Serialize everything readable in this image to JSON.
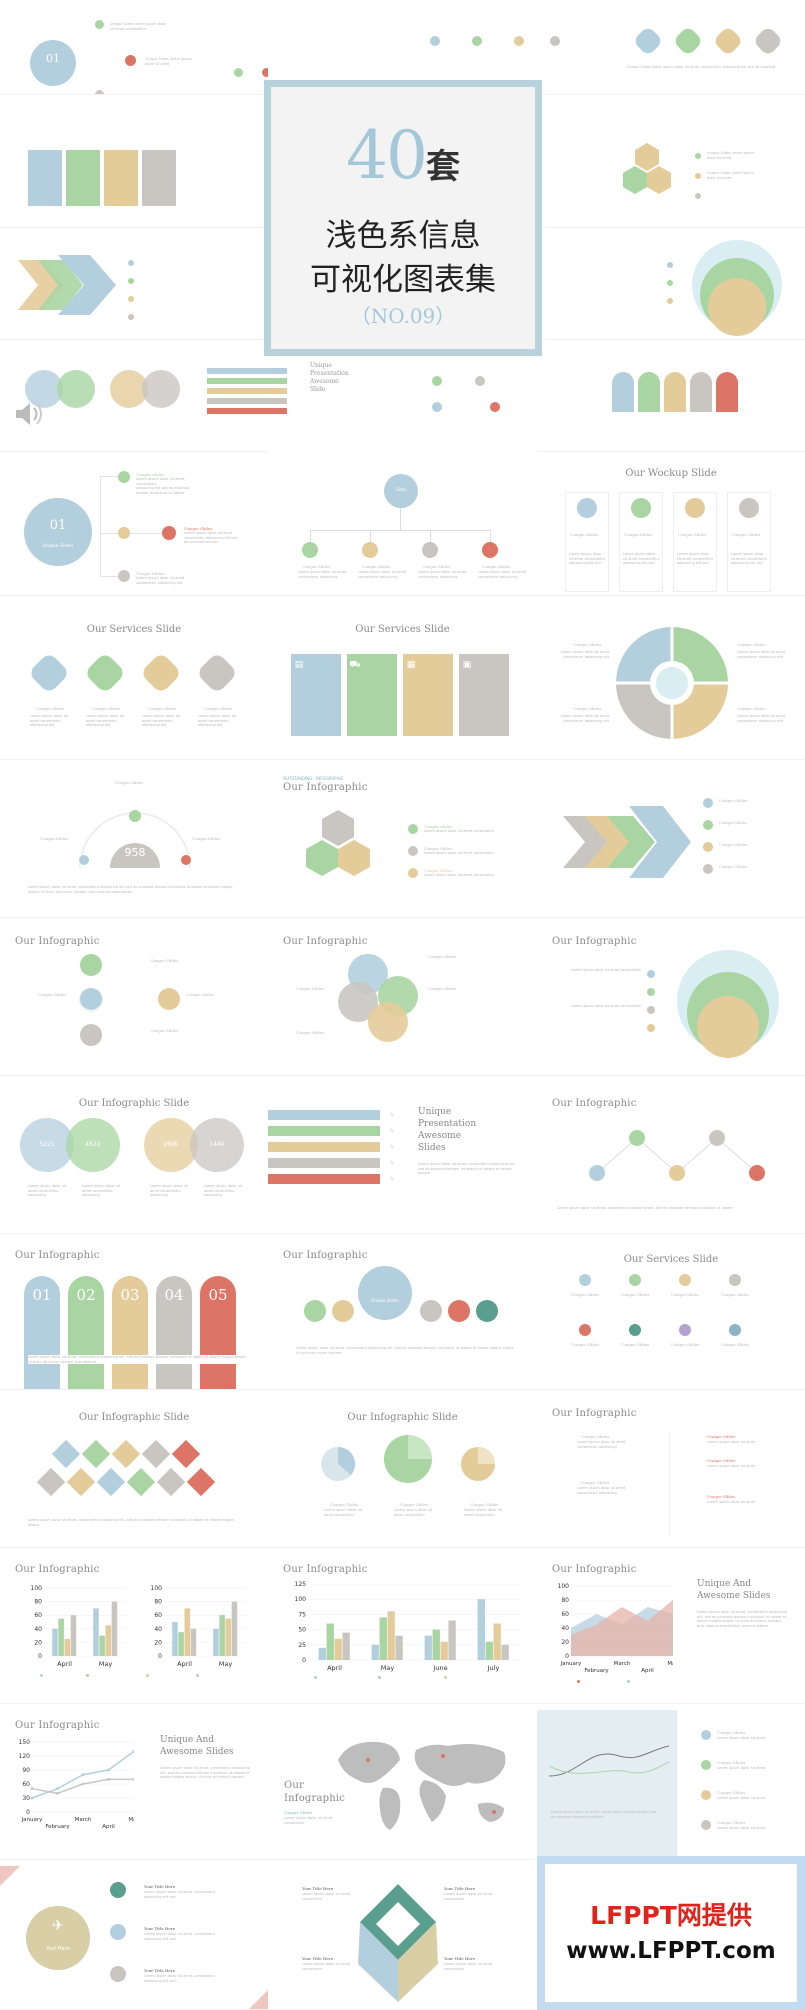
{
  "cover": {
    "num": "40",
    "tao": "套",
    "line1": "浅色系信息",
    "line2": "可视化图表集",
    "code": "（NO.09）"
  },
  "watermark": {
    "line1": "LFPPT网提供",
    "line2": "www.LFPPT.com"
  },
  "headings": {
    "wockup": "Our Wockup Slide",
    "services": "Our Services Slide",
    "infographic": "Our Infographic",
    "infographic_slide": "Our Infographic Slide",
    "unique_awesome": "Unique And Awesome Slides",
    "upas": "Unique Presentation Awesome Slides",
    "our": "Our",
    "infographic_word": "Infographic"
  },
  "labels": {
    "unique": "Unique Slides",
    "title_here": "Your Title Here",
    "text_here": "Text Here",
    "big_num": "958",
    "one": "01"
  },
  "numbers": {
    "steps": [
      "01",
      "02",
      "03",
      "04",
      "05"
    ],
    "stats": [
      "5221",
      "4522",
      "2890",
      "1440"
    ]
  },
  "charts": {
    "bars_a": {
      "type": "bar",
      "categories": [
        "April",
        "May"
      ],
      "ylim": [
        0,
        100
      ],
      "ticks": [
        "0",
        "20",
        "40",
        "60",
        "80",
        "100"
      ],
      "series": [
        [
          40,
          70
        ],
        [
          55,
          30
        ],
        [
          25,
          45
        ],
        [
          60,
          80
        ]
      ]
    },
    "bars_b": {
      "type": "bar",
      "categories": [
        "April",
        "May"
      ],
      "ylim": [
        0,
        100
      ],
      "ticks": [
        "0",
        "20",
        "40",
        "60",
        "80",
        "100"
      ],
      "series": [
        [
          50,
          40
        ],
        [
          35,
          60
        ],
        [
          70,
          55
        ],
        [
          40,
          80
        ]
      ]
    },
    "bars_c": {
      "type": "bar",
      "categories": [
        "April",
        "May",
        "June",
        "July"
      ],
      "ylim": [
        0,
        125
      ],
      "ticks": [
        "0",
        "25",
        "50",
        "75",
        "100",
        "125"
      ],
      "series": [
        [
          20,
          25,
          40,
          100
        ],
        [
          60,
          70,
          50,
          30
        ],
        [
          35,
          80,
          30,
          60
        ],
        [
          45,
          40,
          65,
          25
        ]
      ]
    },
    "area": {
      "type": "area",
      "categories": [
        "January",
        "February",
        "March",
        "April",
        "May"
      ],
      "ylim": [
        0,
        100
      ],
      "ticks": [
        "0",
        "20",
        "40",
        "60",
        "80",
        "100"
      ]
    },
    "line": {
      "type": "line",
      "categories": [
        "January",
        "February",
        "March",
        "April",
        "May"
      ],
      "ylim": [
        0,
        150
      ],
      "ticks": [
        "0",
        "30",
        "60",
        "90",
        "120",
        "150"
      ]
    }
  },
  "colors": {
    "blue": "#b3cfde",
    "green": "#a8d5a2",
    "tan": "#e4cc9a",
    "grey": "#c9c6c2",
    "red": "#dc7566"
  }
}
